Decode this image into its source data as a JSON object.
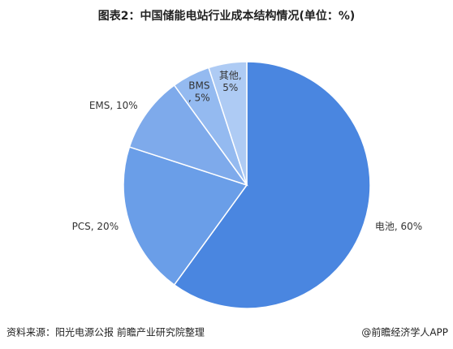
{
  "chart_data": {
    "type": "pie",
    "title": "图表2：中国储能电站行业成本结构情况(单位：%)",
    "values": [
      60,
      20,
      10,
      5,
      5
    ],
    "value_labels": [
      "电池, 60%",
      "PCS, 20%",
      "EMS, 10%",
      "BMS\n, 5%",
      "其他,\n5%"
    ],
    "colors": [
      "#4a86e0",
      "#6a9ee8",
      "#7eaaeb",
      "#94baf0",
      "#aecbf4"
    ],
    "source": "资料来源：阳光电源公报 前瞻产业研究院整理",
    "credit": "@前瞻经济学人APP"
  }
}
